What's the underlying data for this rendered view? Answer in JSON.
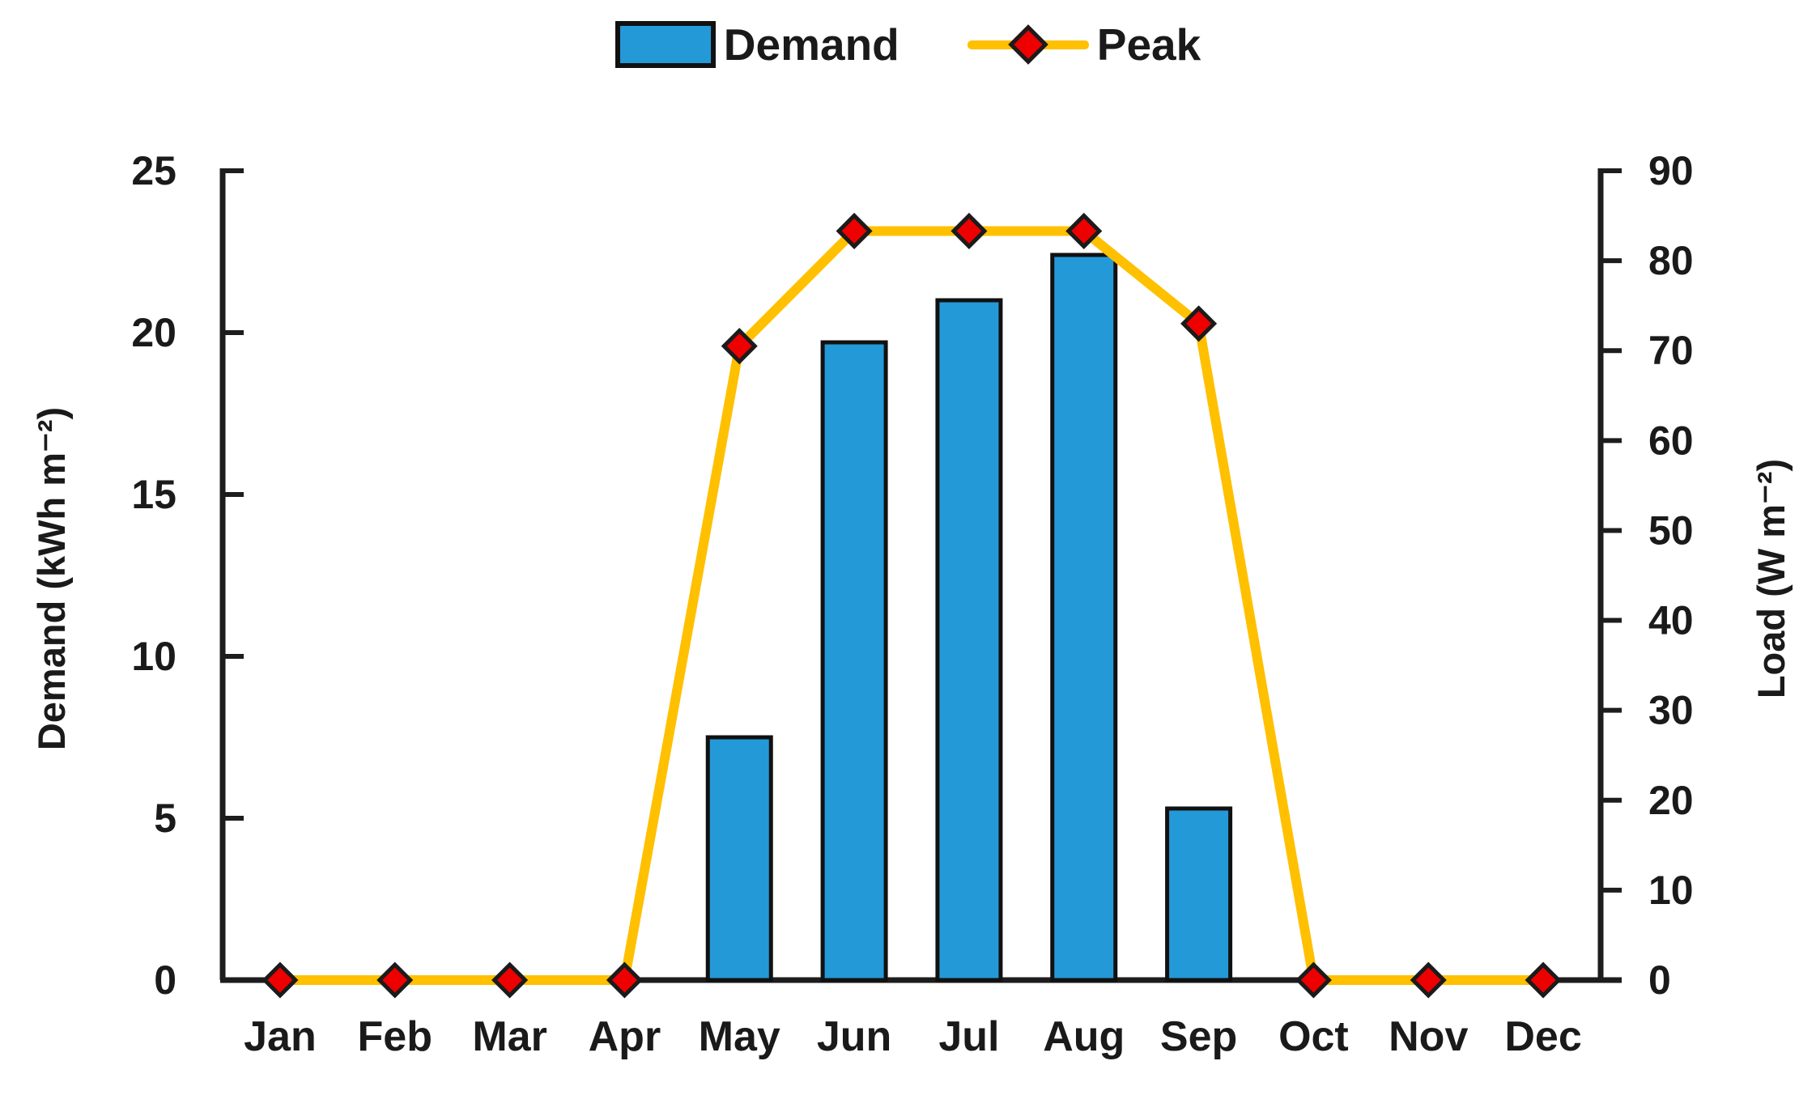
{
  "chart_data": {
    "type": "combo",
    "title": "",
    "categories": [
      "Jan",
      "Feb",
      "Mar",
      "Apr",
      "May",
      "Jun",
      "Jul",
      "Aug",
      "Sep",
      "Oct",
      "Nov",
      "Dec"
    ],
    "series": [
      {
        "name": "Demand",
        "type": "bar",
        "axis": "left",
        "color": "#2499d8",
        "values": [
          0,
          0,
          0,
          0,
          7.5,
          19.7,
          21,
          22.4,
          5.3,
          0,
          0,
          0
        ]
      },
      {
        "name": "Peak",
        "type": "line",
        "axis": "right",
        "color": "#ffc000",
        "marker": "diamond",
        "marker_color": "#ee0000",
        "values": [
          0,
          0,
          0,
          0,
          70.5,
          83.3,
          83.3,
          83.3,
          73,
          0,
          0,
          0
        ]
      }
    ],
    "y_left": {
      "label": "Demand (kWh m⁻²)",
      "min": 0,
      "max": 25,
      "tick_step": 5,
      "ticks": [
        0,
        5,
        10,
        15,
        20,
        25
      ]
    },
    "y_right": {
      "label": "Load (W m⁻²)",
      "min": 0,
      "max": 90,
      "tick_step": 10,
      "ticks": [
        0,
        10,
        20,
        30,
        40,
        50,
        60,
        70,
        80,
        90
      ]
    },
    "legend": {
      "position": "top",
      "entries": [
        "Demand",
        "Peak"
      ]
    },
    "grid": false,
    "background": "#ffffff",
    "axis_color": "#1d1d1d",
    "text_color": "#1a1a1a"
  }
}
